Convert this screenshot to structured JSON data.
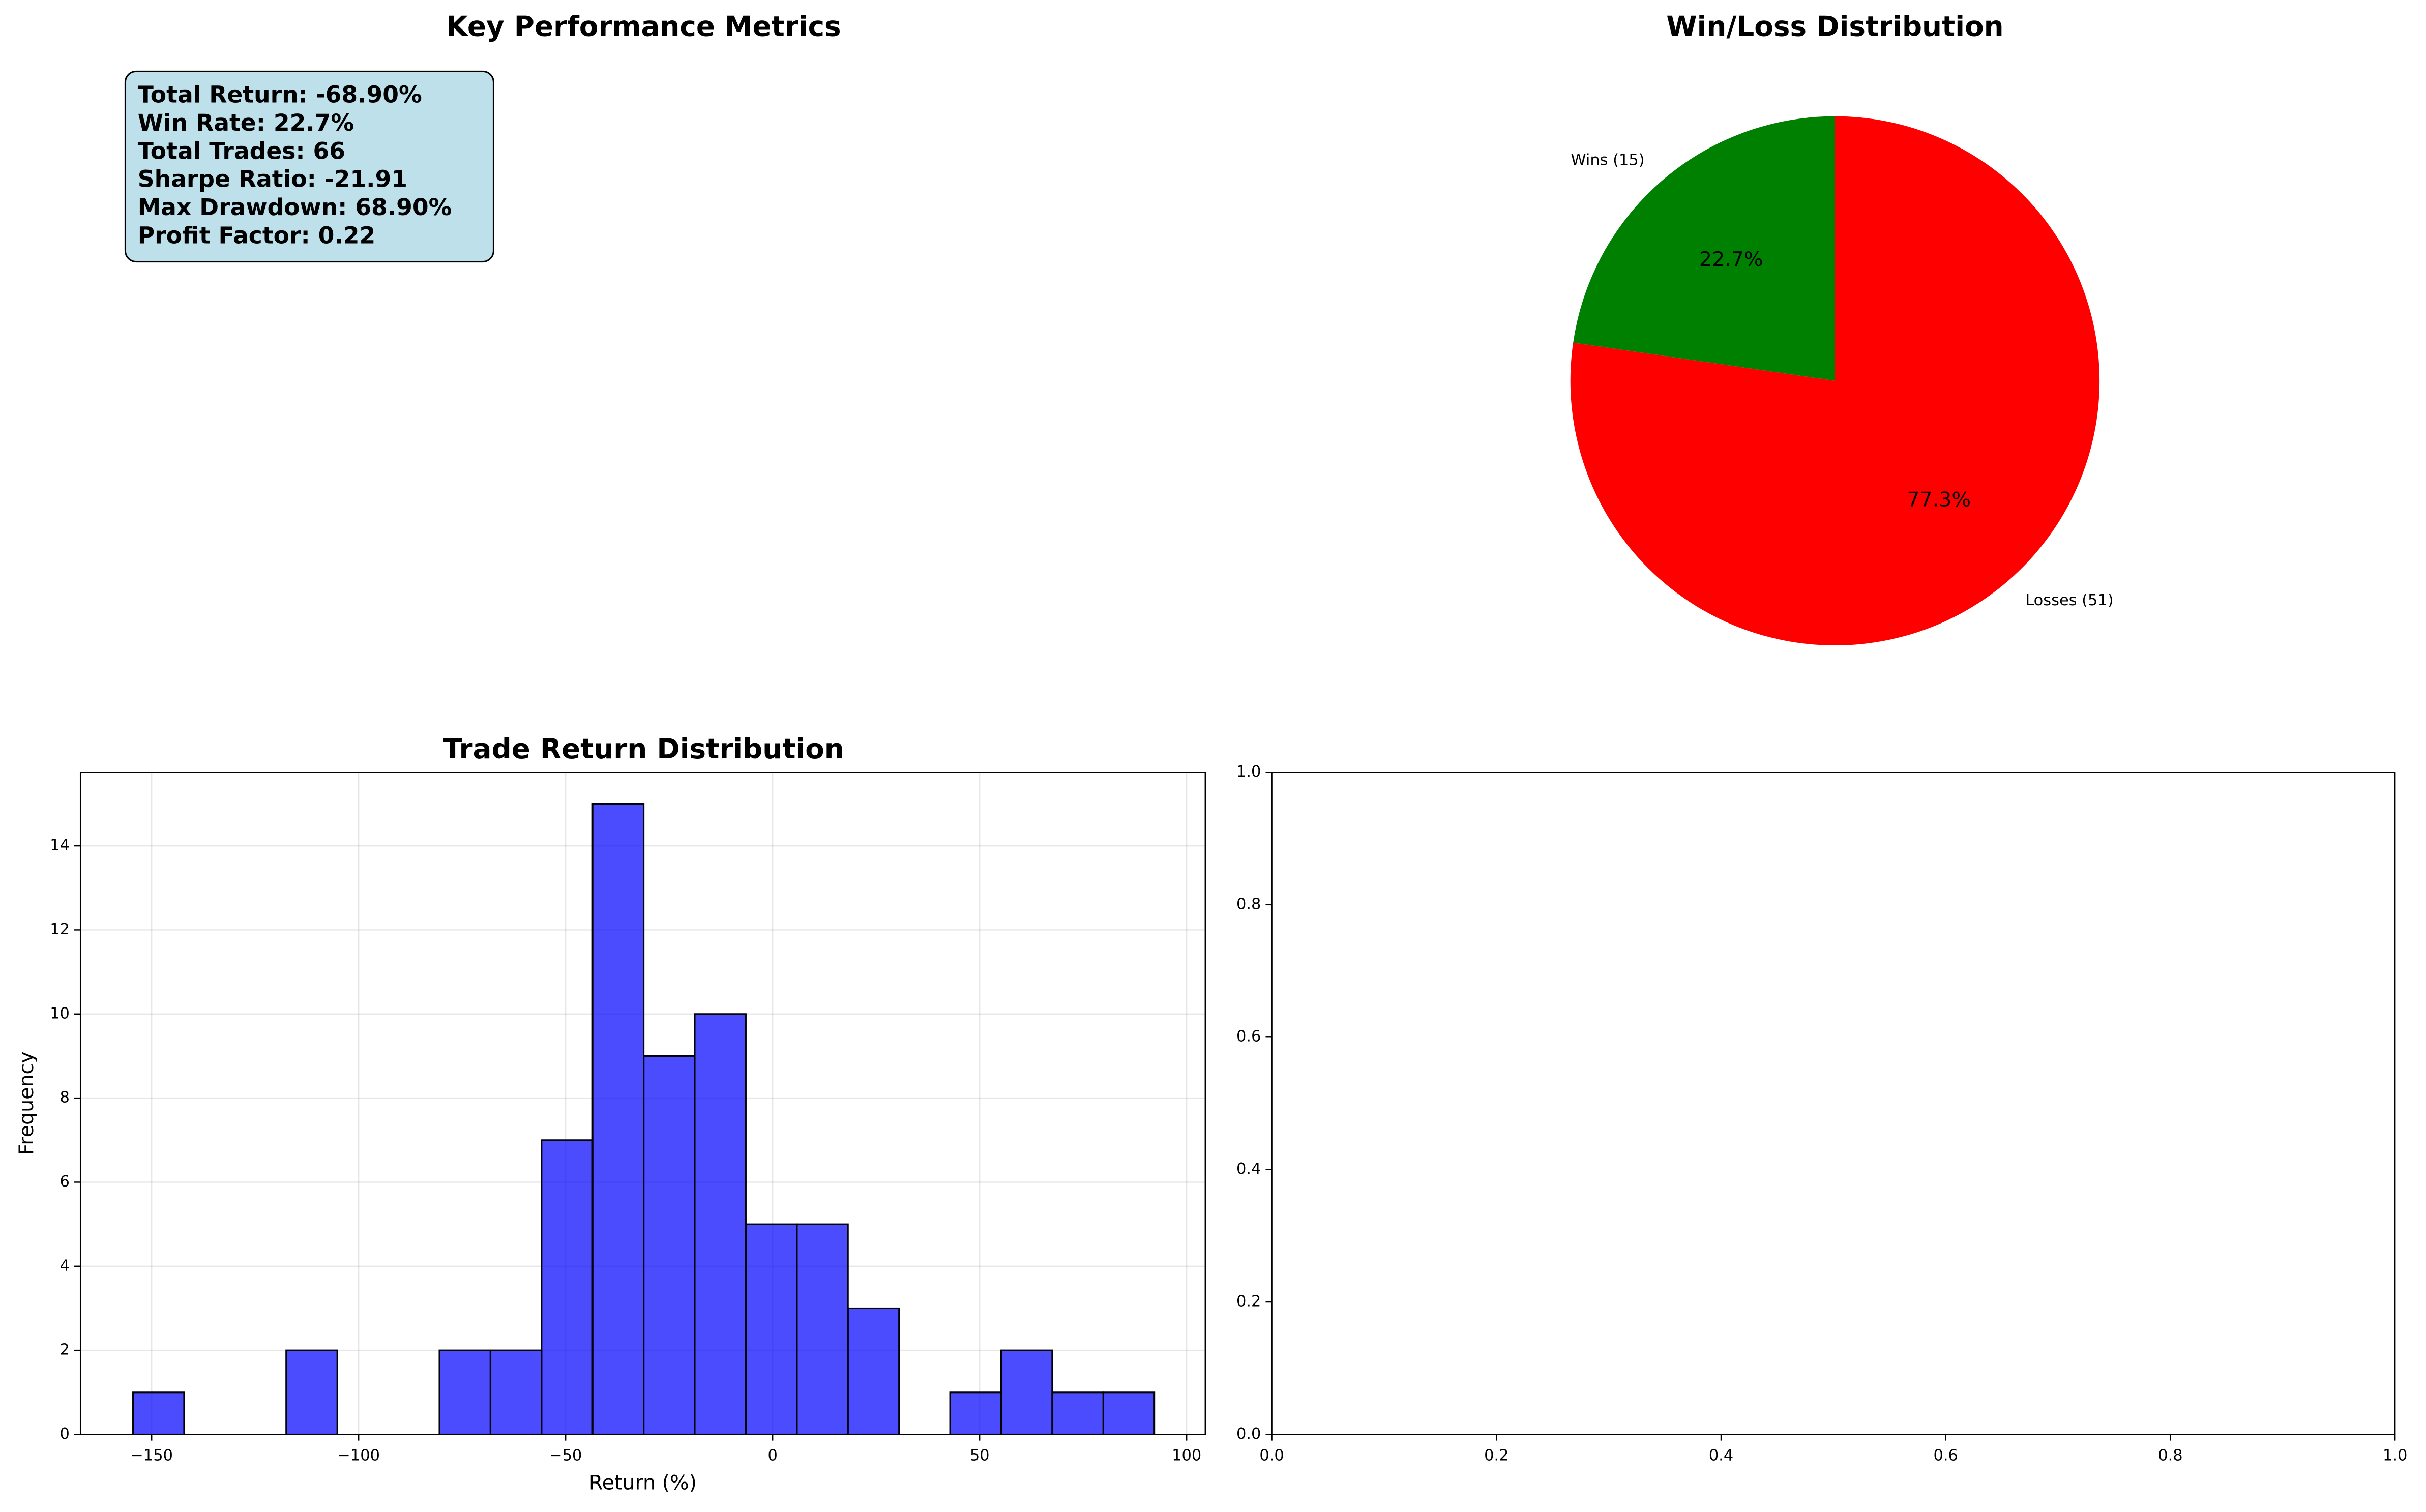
{
  "chart_data": [
    {
      "type": "text",
      "title": "Key Performance Metrics",
      "lines": [
        "Total Return: -68.90%",
        "Win Rate: 22.7%",
        "Total Trades: 66",
        "Sharpe Ratio: -21.91",
        "Max Drawdown: 68.90%",
        "Profit Factor: 0.22"
      ],
      "box_color": "#add8e6"
    },
    {
      "type": "pie",
      "title": "Win/Loss Distribution",
      "categories": [
        "Wins (15)",
        "Losses (51)"
      ],
      "values": [
        22.7,
        77.3
      ],
      "value_labels": [
        "22.7%",
        "77.3%"
      ],
      "colors": [
        "#008000",
        "#ff0000"
      ]
    },
    {
      "type": "histogram",
      "title": "Trade Return Distribution",
      "x_label": "Return (%)",
      "y_label": "Frequency",
      "bins": [
        -154.5,
        -142.17,
        -129.83,
        -117.5,
        -105.16,
        -92.83,
        -80.49,
        -68.16,
        -55.82,
        -43.49,
        -31.15,
        -18.82,
        -6.48,
        5.86,
        18.19,
        30.53,
        42.86,
        55.2,
        67.53,
        79.87,
        92.2
      ],
      "counts": [
        1,
        0,
        0,
        2,
        0,
        0,
        2,
        2,
        7,
        15,
        9,
        10,
        5,
        5,
        3,
        0,
        1,
        2,
        1,
        1
      ],
      "color": "#0000ff",
      "edge_color": "#000000",
      "xlim": [
        -167.2,
        104.5
      ],
      "ylim": [
        0,
        15.75
      ],
      "xticks": [
        {
          "value": -150,
          "label": "−150"
        },
        {
          "value": -100,
          "label": "−100"
        },
        {
          "value": -50,
          "label": "−50"
        },
        0,
        50,
        100
      ],
      "yticks": [
        0,
        2,
        4,
        6,
        8,
        10,
        12,
        14
      ],
      "grid": true
    },
    {
      "type": "axes",
      "xlim": [
        0,
        1
      ],
      "ylim": [
        0,
        1
      ],
      "xticks": [
        {
          "value": 0,
          "label": "0.0"
        },
        {
          "value": 0.2,
          "label": "0.2"
        },
        {
          "value": 0.4,
          "label": "0.4"
        },
        {
          "value": 0.6,
          "label": "0.6"
        },
        {
          "value": 0.8,
          "label": "0.8"
        },
        {
          "value": 1,
          "label": "1.0"
        }
      ],
      "yticks": [
        {
          "value": 0,
          "label": "0.0"
        },
        {
          "value": 0.2,
          "label": "0.2"
        },
        {
          "value": 0.4,
          "label": "0.4"
        },
        {
          "value": 0.6,
          "label": "0.6"
        },
        {
          "value": 0.8,
          "label": "0.8"
        },
        {
          "value": 1,
          "label": "1.0"
        }
      ],
      "grid": false
    }
  ]
}
